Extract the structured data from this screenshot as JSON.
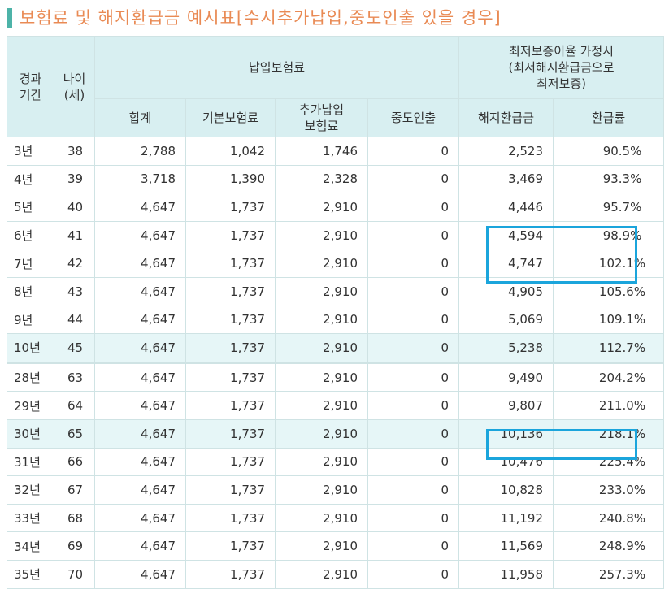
{
  "title": "보험료 및 해지환급금 예시표[수시추가납입,중도인출 있을 경우]",
  "header": {
    "period": "경과\n기간",
    "age": "나이\n(세)",
    "payment_group": "납입보험료",
    "total": "합계",
    "base": "기본보험료",
    "additional": "추가납입\n보험료",
    "withdrawal": "중도인출",
    "guarantee_group": "최저보증이율 가정시\n(최저해지환급금으로\n최저보증)",
    "surrender": "해지환급금",
    "rate": "환급률"
  },
  "rows": [
    {
      "period": "3년",
      "age": "38",
      "total": "2,788",
      "base": "1,042",
      "additional": "1,746",
      "withdrawal": "0",
      "surrender": "2,523",
      "rate": "90.5%"
    },
    {
      "period": "4년",
      "age": "39",
      "total": "3,718",
      "base": "1,390",
      "additional": "2,328",
      "withdrawal": "0",
      "surrender": "3,469",
      "rate": "93.3%"
    },
    {
      "period": "5년",
      "age": "40",
      "total": "4,647",
      "base": "1,737",
      "additional": "2,910",
      "withdrawal": "0",
      "surrender": "4,446",
      "rate": "95.7%"
    },
    {
      "period": "6년",
      "age": "41",
      "total": "4,647",
      "base": "1,737",
      "additional": "2,910",
      "withdrawal": "0",
      "surrender": "4,594",
      "rate": "98.9%"
    },
    {
      "period": "7년",
      "age": "42",
      "total": "4,647",
      "base": "1,737",
      "additional": "2,910",
      "withdrawal": "0",
      "surrender": "4,747",
      "rate": "102.1%"
    },
    {
      "period": "8년",
      "age": "43",
      "total": "4,647",
      "base": "1,737",
      "additional": "2,910",
      "withdrawal": "0",
      "surrender": "4,905",
      "rate": "105.6%"
    },
    {
      "period": "9년",
      "age": "44",
      "total": "4,647",
      "base": "1,737",
      "additional": "2,910",
      "withdrawal": "0",
      "surrender": "5,069",
      "rate": "109.1%"
    },
    {
      "period": "10년",
      "age": "45",
      "total": "4,647",
      "base": "1,737",
      "additional": "2,910",
      "withdrawal": "0",
      "surrender": "5,238",
      "rate": "112.7%"
    },
    {
      "period": "28년",
      "age": "63",
      "total": "4,647",
      "base": "1,737",
      "additional": "2,910",
      "withdrawal": "0",
      "surrender": "9,490",
      "rate": "204.2%"
    },
    {
      "period": "29년",
      "age": "64",
      "total": "4,647",
      "base": "1,737",
      "additional": "2,910",
      "withdrawal": "0",
      "surrender": "9,807",
      "rate": "211.0%"
    },
    {
      "period": "30년",
      "age": "65",
      "total": "4,647",
      "base": "1,737",
      "additional": "2,910",
      "withdrawal": "0",
      "surrender": "10,136",
      "rate": "218.1%"
    },
    {
      "period": "31년",
      "age": "66",
      "total": "4,647",
      "base": "1,737",
      "additional": "2,910",
      "withdrawal": "0",
      "surrender": "10,476",
      "rate": "225.4%"
    },
    {
      "period": "32년",
      "age": "67",
      "total": "4,647",
      "base": "1,737",
      "additional": "2,910",
      "withdrawal": "0",
      "surrender": "10,828",
      "rate": "233.0%"
    },
    {
      "period": "33년",
      "age": "68",
      "total": "4,647",
      "base": "1,737",
      "additional": "2,910",
      "withdrawal": "0",
      "surrender": "11,192",
      "rate": "240.8%"
    },
    {
      "period": "34년",
      "age": "69",
      "total": "4,647",
      "base": "1,737",
      "additional": "2,910",
      "withdrawal": "0",
      "surrender": "11,569",
      "rate": "248.9%"
    },
    {
      "period": "35년",
      "age": "70",
      "total": "4,647",
      "base": "1,737",
      "additional": "2,910",
      "withdrawal": "0",
      "surrender": "11,958",
      "rate": "257.3%"
    }
  ],
  "colors": {
    "title": "#e98a54",
    "accent_bar": "#4db3a8",
    "header_bg": "#d8eff1",
    "highlight_row": "#e6f6f7",
    "grid": "#cfe3e4",
    "highlight_box": "#1ba5dc"
  }
}
